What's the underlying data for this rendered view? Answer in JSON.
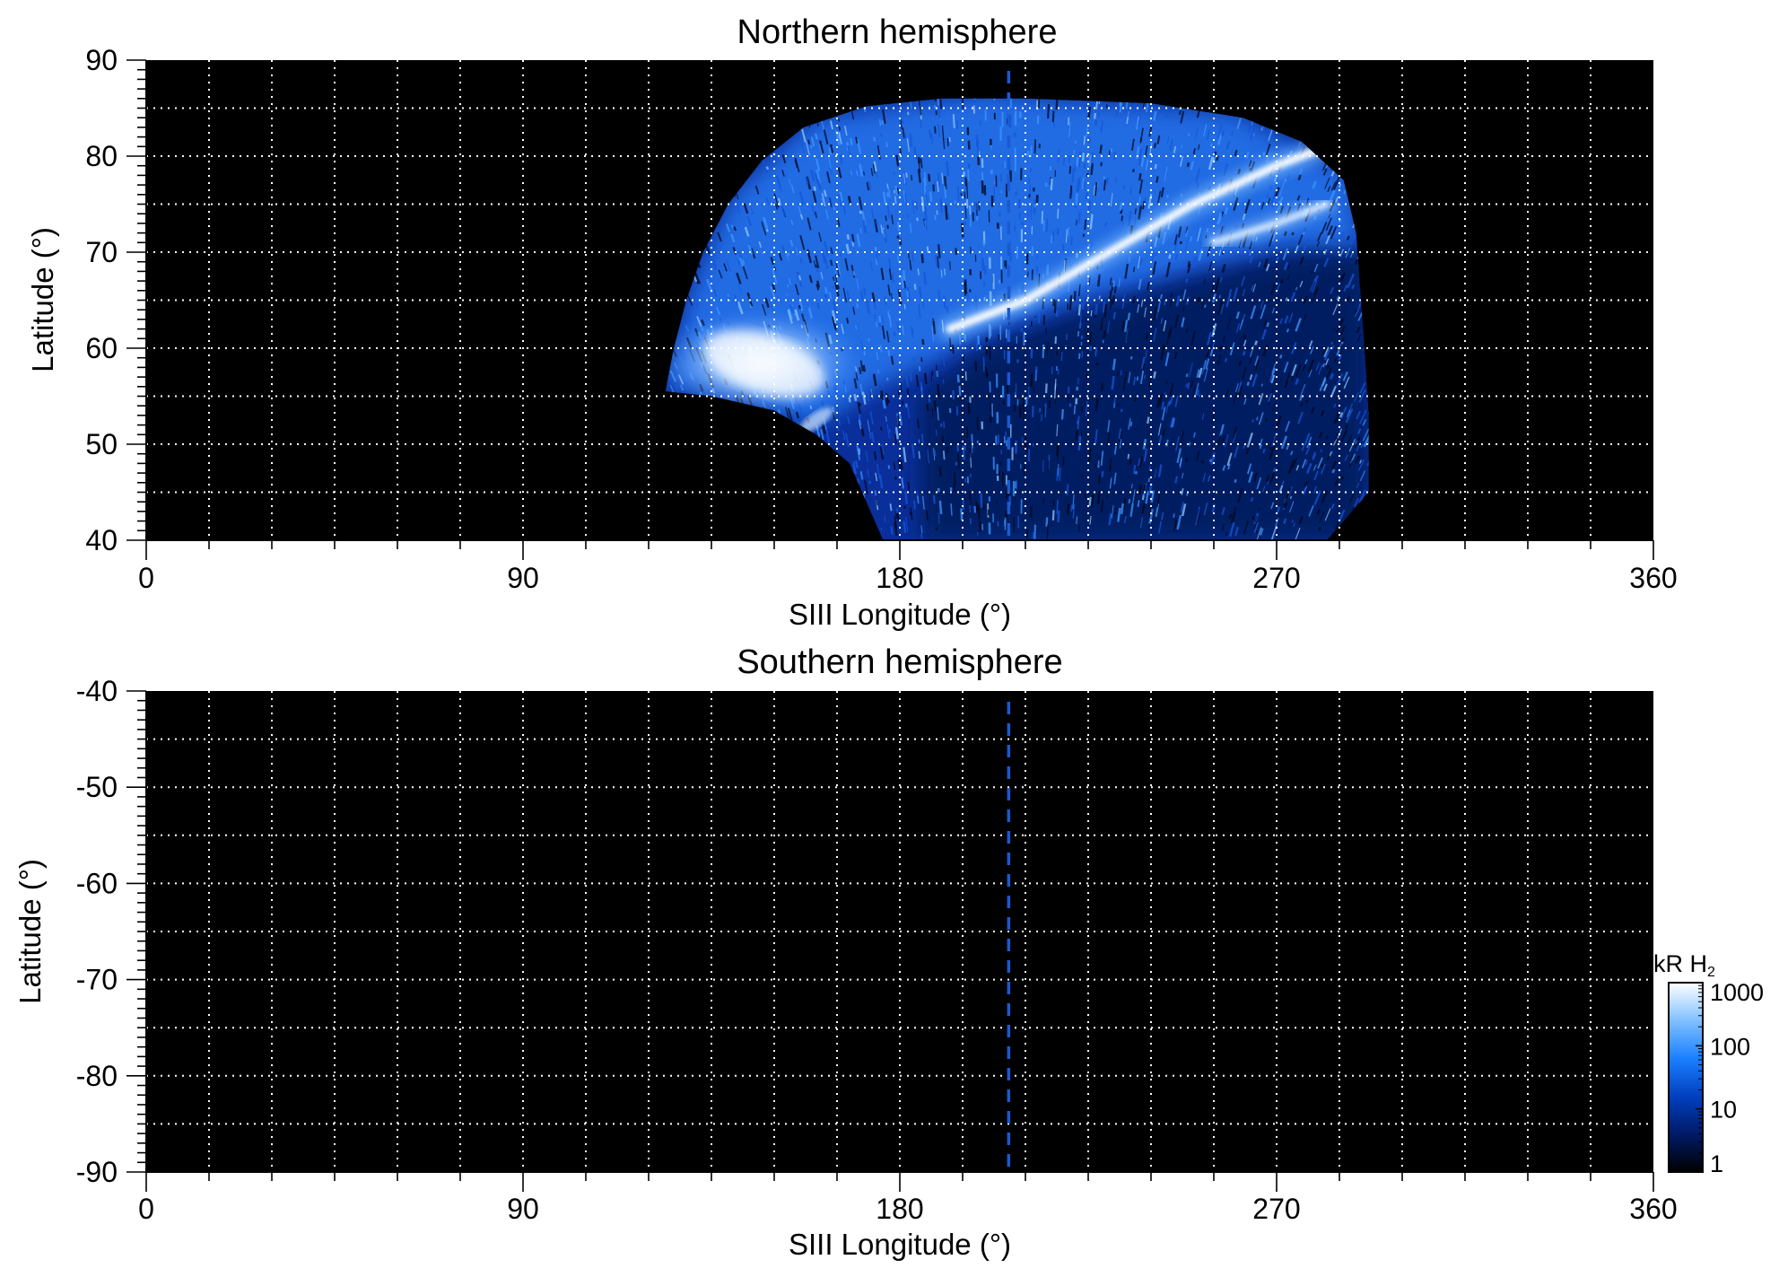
{
  "chart_data": [
    {
      "type": "heatmap",
      "title": "Northern hemisphere",
      "xlabel": "SIII Longitude (°)",
      "ylabel": "Latitude (°)",
      "xlim": [
        0,
        360
      ],
      "ylim": [
        40,
        90
      ],
      "xticks": [
        0,
        90,
        180,
        270,
        360
      ],
      "xtick_labels": [
        "0",
        "90",
        "180",
        "270",
        "360"
      ],
      "yticks": [
        40,
        50,
        60,
        70,
        80,
        90
      ],
      "ytick_labels": [
        "40",
        "50",
        "60",
        "70",
        "80",
        "90"
      ],
      "grid": true,
      "grid_x_step": 15,
      "grid_y_step": 5,
      "reference_longitude": 206,
      "emission_region": {
        "longitude_range": [
          121,
          291
        ],
        "latitude_range": [
          40,
          86
        ]
      },
      "main_oval_arc": [
        {
          "lon": 192,
          "lat": 62
        },
        {
          "lon": 210,
          "lat": 65
        },
        {
          "lon": 230,
          "lat": 70
        },
        {
          "lon": 250,
          "lat": 75
        },
        {
          "lon": 270,
          "lat": 79
        },
        {
          "lon": 282,
          "lat": 81
        }
      ],
      "secondary_arc": [
        {
          "lon": 255,
          "lat": 71
        },
        {
          "lon": 270,
          "lat": 73
        },
        {
          "lon": 282,
          "lat": 75
        }
      ],
      "bright_patch": {
        "lon_range": [
          125,
          175
        ],
        "lat_range": [
          53,
          64
        ]
      }
    },
    {
      "type": "heatmap",
      "title": "Southern hemisphere",
      "xlabel": "SIII Longitude (°)",
      "ylabel": "Latitude (°)",
      "xlim": [
        0,
        360
      ],
      "ylim": [
        -90,
        -40
      ],
      "xticks": [
        0,
        90,
        180,
        270,
        360
      ],
      "xtick_labels": [
        "0",
        "90",
        "180",
        "270",
        "360"
      ],
      "yticks": [
        -40,
        -50,
        -60,
        -70,
        -80,
        -90
      ],
      "ytick_labels": [
        "-40",
        "-50",
        "-60",
        "-70",
        "-80",
        "-90"
      ],
      "grid": true,
      "grid_x_step": 15,
      "grid_y_step": 5,
      "reference_longitude": 206
    }
  ],
  "colorbar": {
    "label": "kR H",
    "label_subscript": "2",
    "scale": "log",
    "range": [
      1,
      1000
    ],
    "ticks": [
      1,
      10,
      100,
      1000
    ],
    "tick_labels": [
      "1",
      "10",
      "100",
      "1000"
    ],
    "colors": [
      "#000000",
      "#001a66",
      "#0040c0",
      "#1a80ff",
      "#80c0ff",
      "#ffffff"
    ]
  }
}
